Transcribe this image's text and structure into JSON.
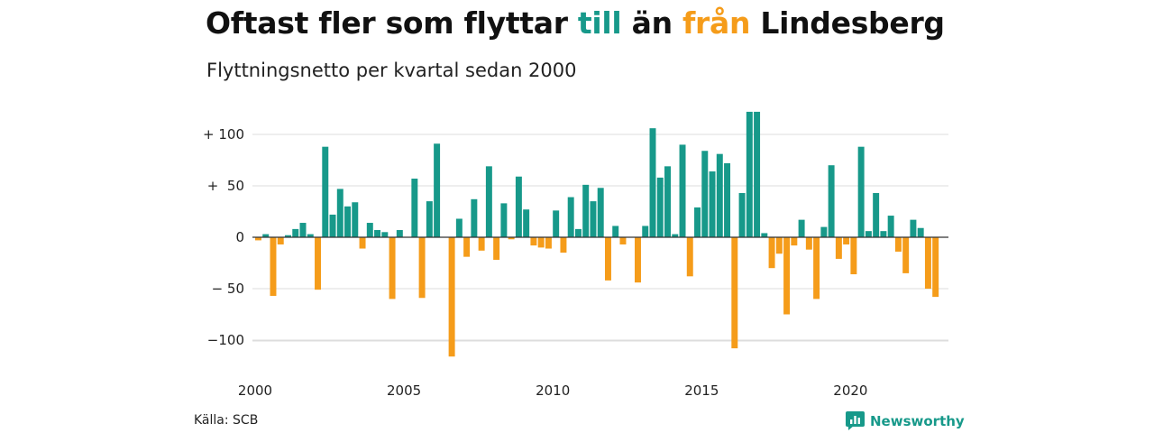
{
  "title": {
    "part1": "Oftast fler som flyttar ",
    "till": "till",
    "part2": " än ",
    "fran": "från",
    "part3": " Lindesberg"
  },
  "subtitle": "Flyttningsnetto per kvartal sedan 2000",
  "source": "Källa: SCB",
  "brand": "Newsworthy",
  "colors": {
    "positive": "#17998a",
    "negative": "#f59c1a",
    "grid": "#dddddd",
    "zero": "#333333"
  },
  "chart_data": {
    "type": "bar",
    "x_start_year": 2000,
    "periods_per_year": 4,
    "ylim": [
      -120,
      122
    ],
    "y_ticks": [
      {
        "value": 100,
        "label": "+ 100"
      },
      {
        "value": 50,
        "label": "+  50"
      },
      {
        "value": 0,
        "label": "0"
      },
      {
        "value": -50,
        "label": "− 50"
      },
      {
        "value": -100,
        "label": "−100"
      }
    ],
    "x_ticks": [
      {
        "year": 2000,
        "label": "2000"
      },
      {
        "year": 2005,
        "label": "2005"
      },
      {
        "year": 2010,
        "label": "2010"
      },
      {
        "year": 2015,
        "label": "2015"
      },
      {
        "year": 2020,
        "label": "2020"
      }
    ],
    "values": [
      -3,
      3,
      -57,
      -7,
      2,
      8,
      14,
      3,
      -51,
      88,
      22,
      47,
      30,
      34,
      -11,
      14,
      7,
      5,
      -60,
      7,
      0,
      57,
      -59,
      35,
      91,
      0,
      -116,
      18,
      -19,
      37,
      -13,
      69,
      -22,
      33,
      -2,
      59,
      27,
      -8,
      -10,
      -11,
      26,
      -15,
      39,
      8,
      51,
      35,
      48,
      -42,
      11,
      -7,
      0,
      -44,
      11,
      106,
      58,
      69,
      3,
      90,
      -38,
      29,
      84,
      64,
      81,
      72,
      -108,
      43,
      122,
      122,
      4,
      -30,
      -16,
      -75,
      -8,
      17,
      -12,
      -60,
      10,
      70,
      -21,
      -7,
      -36,
      88,
      6,
      43,
      6,
      21,
      -14,
      -35,
      17,
      9,
      -50,
      -58
    ]
  }
}
